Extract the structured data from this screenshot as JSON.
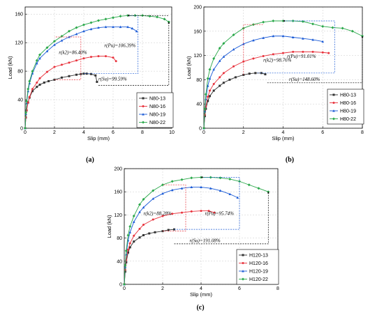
{
  "chart_data": [
    {
      "id": "a",
      "type": "line",
      "panel_label": "(a)",
      "xlabel": "Slip (mm)",
      "ylabel": "Load (kN)",
      "xlim": [
        0,
        10
      ],
      "ylim": [
        0,
        170
      ],
      "xticks": [
        0,
        2,
        4,
        6,
        8,
        10
      ],
      "yticks": [
        0,
        40,
        80,
        120,
        160
      ],
      "grid": true,
      "legend": "bottom-right",
      "series": [
        {
          "name": "N80-13",
          "color": "#333333",
          "marker": "square",
          "x": [
            0,
            0.05,
            0.1,
            0.2,
            0.3,
            0.5,
            0.8,
            1.0,
            1.3,
            1.6,
            2.0,
            2.5,
            3.0,
            3.5,
            3.8,
            4.0,
            4.2,
            4.5,
            4.8,
            4.9
          ],
          "y": [
            0,
            15,
            25,
            36,
            43,
            52,
            58,
            61,
            64,
            66,
            68,
            71,
            73,
            75,
            76,
            76.5,
            76.5,
            76,
            74,
            65
          ]
        },
        {
          "name": "N80-16",
          "color": "#e8333d",
          "marker": "circle",
          "x": [
            0,
            0.05,
            0.1,
            0.2,
            0.3,
            0.5,
            0.8,
            1.0,
            1.5,
            2.0,
            2.5,
            3.0,
            3.5,
            4.0,
            4.5,
            5.0,
            5.5,
            6.0,
            6.2
          ],
          "y": [
            0,
            15,
            25,
            36,
            44,
            55,
            64,
            70,
            79,
            86,
            89,
            92,
            95,
            98,
            100,
            101,
            101,
            99,
            94
          ]
        },
        {
          "name": "N80-19",
          "color": "#1a5ad6",
          "marker": "triangle",
          "x": [
            0,
            0.05,
            0.1,
            0.2,
            0.3,
            0.5,
            0.8,
            1.0,
            1.5,
            2.0,
            2.5,
            3.0,
            3.5,
            4.0,
            4.5,
            5.0,
            5.5,
            6.0,
            6.5,
            7.0,
            7.3,
            7.6
          ],
          "y": [
            0,
            20,
            35,
            52,
            63,
            77,
            91,
            98,
            108,
            117,
            123,
            128,
            132,
            136,
            139,
            141,
            142,
            142,
            142,
            142,
            140,
            136
          ]
        },
        {
          "name": "N80-22",
          "color": "#2aa84a",
          "marker": "diamond",
          "x": [
            0,
            0.05,
            0.1,
            0.2,
            0.3,
            0.5,
            0.8,
            1.0,
            1.5,
            2.0,
            2.5,
            3.0,
            3.5,
            4.0,
            4.5,
            5.0,
            5.5,
            6.0,
            6.5,
            7.0,
            7.5,
            8.0,
            8.5,
            9.0,
            9.5,
            9.8
          ],
          "y": [
            0,
            22,
            38,
            55,
            66,
            80,
            95,
            103,
            113,
            122,
            129,
            136,
            141,
            145,
            148,
            151,
            153,
            155,
            157,
            158,
            158,
            158,
            157,
            156,
            153,
            149
          ]
        }
      ],
      "annotations": [
        {
          "text": "r(Pu)=106.39%"
        },
        {
          "text": "r(k2)=86.40%"
        },
        {
          "text": "r(Su)=99.59%"
        }
      ]
    },
    {
      "id": "b",
      "type": "line",
      "panel_label": "(b)",
      "xlabel": "Slip (mm)",
      "ylabel": "Load (kN)",
      "xlim": [
        0,
        8
      ],
      "ylim": [
        0,
        200
      ],
      "xticks": [
        0,
        2,
        4,
        6,
        8
      ],
      "yticks": [
        0,
        40,
        80,
        120,
        160,
        200
      ],
      "grid": true,
      "legend": "bottom-right",
      "series": [
        {
          "name": "H80-13",
          "color": "#333333",
          "marker": "square",
          "x": [
            0,
            0.05,
            0.1,
            0.2,
            0.3,
            0.5,
            0.8,
            1.0,
            1.3,
            1.6,
            2.0,
            2.3,
            2.6,
            2.9,
            3.1
          ],
          "y": [
            0,
            20,
            32,
            45,
            53,
            62,
            70,
            75,
            80,
            84,
            88,
            90,
            91,
            91,
            89
          ]
        },
        {
          "name": "H80-16",
          "color": "#e8333d",
          "marker": "circle",
          "x": [
            0,
            0.05,
            0.1,
            0.2,
            0.3,
            0.5,
            0.8,
            1.0,
            1.5,
            2.0,
            2.5,
            3.0,
            3.5,
            4.0,
            4.5,
            5.0,
            5.5,
            6.0,
            6.3
          ],
          "y": [
            0,
            22,
            36,
            52,
            62,
            73,
            84,
            91,
            102,
            110,
            115,
            119,
            122,
            124,
            126,
            126,
            126,
            125,
            124
          ]
        },
        {
          "name": "H80-19",
          "color": "#1a5ad6",
          "marker": "triangle",
          "x": [
            0,
            0.05,
            0.1,
            0.2,
            0.3,
            0.5,
            0.8,
            1.0,
            1.5,
            2.0,
            2.5,
            3.0,
            3.5,
            4.0,
            4.5,
            5.0,
            5.5,
            6.0
          ],
          "y": [
            0,
            28,
            48,
            70,
            82,
            97,
            111,
            118,
            130,
            139,
            145,
            149,
            152,
            152,
            150,
            148,
            146,
            143
          ]
        },
        {
          "name": "H80-22",
          "color": "#2aa84a",
          "marker": "diamond",
          "x": [
            0,
            0.05,
            0.1,
            0.2,
            0.3,
            0.5,
            0.8,
            1.0,
            1.5,
            2.0,
            2.5,
            3.0,
            3.5,
            4.0,
            4.5,
            5.0,
            5.5,
            6.0,
            6.5,
            7.0,
            7.5,
            8.0
          ],
          "y": [
            0,
            32,
            56,
            82,
            97,
            115,
            132,
            140,
            154,
            165,
            171,
            175,
            177,
            177,
            177,
            176,
            172,
            168,
            166,
            165,
            160,
            152
          ]
        }
      ],
      "annotations": [
        {
          "text": "r(Pu)=91.01%"
        },
        {
          "text": "r(k2)=98.76%"
        },
        {
          "text": "r(Su)=148.60%"
        }
      ]
    },
    {
      "id": "c",
      "type": "line",
      "panel_label": "(c)",
      "xlabel": "Slip (mm)",
      "ylabel": "Load (kN)",
      "xlim": [
        0,
        8
      ],
      "ylim": [
        0,
        200
      ],
      "xticks": [
        0,
        2,
        4,
        6,
        8
      ],
      "yticks": [
        0,
        40,
        80,
        120,
        160,
        200
      ],
      "grid": true,
      "legend": "bottom-right",
      "series": [
        {
          "name": "H120-13",
          "color": "#333333",
          "marker": "square",
          "x": [
            0,
            0.05,
            0.1,
            0.2,
            0.3,
            0.5,
            0.8,
            1.0,
            1.3,
            1.6,
            2.0,
            2.3,
            2.6
          ],
          "y": [
            0,
            22,
            38,
            55,
            64,
            74,
            81,
            85,
            88,
            90,
            92,
            94,
            95
          ]
        },
        {
          "name": "H120-16",
          "color": "#e8333d",
          "marker": "circle",
          "x": [
            0,
            0.05,
            0.1,
            0.2,
            0.3,
            0.5,
            0.8,
            1.0,
            1.5,
            2.0,
            2.5,
            3.0,
            3.5,
            4.0,
            4.4,
            4.7
          ],
          "y": [
            0,
            25,
            42,
            60,
            71,
            84,
            96,
            103,
            112,
            118,
            122,
            124,
            126,
            127,
            127,
            124
          ]
        },
        {
          "name": "H120-19",
          "color": "#1a5ad6",
          "marker": "triangle",
          "x": [
            0,
            0.05,
            0.1,
            0.2,
            0.3,
            0.5,
            0.8,
            1.0,
            1.5,
            2.0,
            2.5,
            3.0,
            3.5,
            4.0,
            4.5,
            5.0,
            5.5,
            5.9
          ],
          "y": [
            0,
            30,
            52,
            76,
            90,
            108,
            125,
            133,
            148,
            157,
            163,
            166,
            168,
            168,
            166,
            162,
            156,
            150
          ]
        },
        {
          "name": "H120-22",
          "color": "#2aa84a",
          "marker": "diamond",
          "x": [
            0,
            0.05,
            0.1,
            0.2,
            0.3,
            0.5,
            0.8,
            1.0,
            1.5,
            2.0,
            2.5,
            3.0,
            3.5,
            4.0,
            4.5,
            5.0,
            5.5,
            6.0,
            6.5,
            7.0,
            7.5
          ],
          "y": [
            0,
            33,
            58,
            85,
            100,
            118,
            138,
            147,
            162,
            172,
            178,
            181,
            184,
            185,
            185,
            184,
            182,
            178,
            172,
            166,
            160
          ]
        }
      ],
      "annotations": [
        {
          "text": "r(k2)=88.28%"
        },
        {
          "text": "r(Pu)=95.74%"
        },
        {
          "text": "r(Su)=191.08%"
        }
      ]
    }
  ]
}
